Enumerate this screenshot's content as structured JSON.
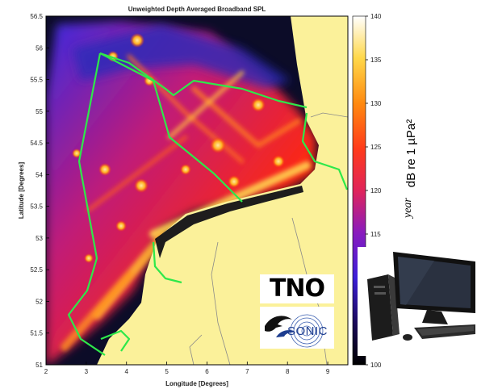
{
  "chart_data": {
    "type": "heatmap",
    "title": "Unweighted Depth Averaged Broadband SPL",
    "xlabel": "Longitude [Degrees]",
    "ylabel": "Latitude [Degrees]",
    "xlim": [
      2,
      9.5
    ],
    "ylim": [
      51,
      56.5
    ],
    "x_ticks": [
      "2",
      "3",
      "4",
      "5",
      "6",
      "7",
      "8",
      "9"
    ],
    "y_ticks": [
      "51",
      "51.5",
      "52",
      "52.5",
      "53",
      "53.5",
      "54",
      "54.5",
      "55",
      "55.5",
      "56",
      "56.5"
    ],
    "colorbar": {
      "label": "dB re 1 µPa²",
      "range": [
        100,
        140
      ],
      "ticks": [
        "100",
        "105",
        "110",
        "115",
        "120",
        "125",
        "130",
        "135",
        "140"
      ],
      "colormap": "hot-purple"
    }
  },
  "colors": {
    "land": "#fbf19a",
    "background_sea": "#0c0c28",
    "boundary_line": "#2ee84a",
    "border_line": "#7a7a7a"
  },
  "logos": {
    "tno": "TNO",
    "sonic": "SONIC"
  },
  "side_caption": "year",
  "icons": {
    "computer": "desktop-computer-icon",
    "dolphin": "dolphin-icon"
  }
}
